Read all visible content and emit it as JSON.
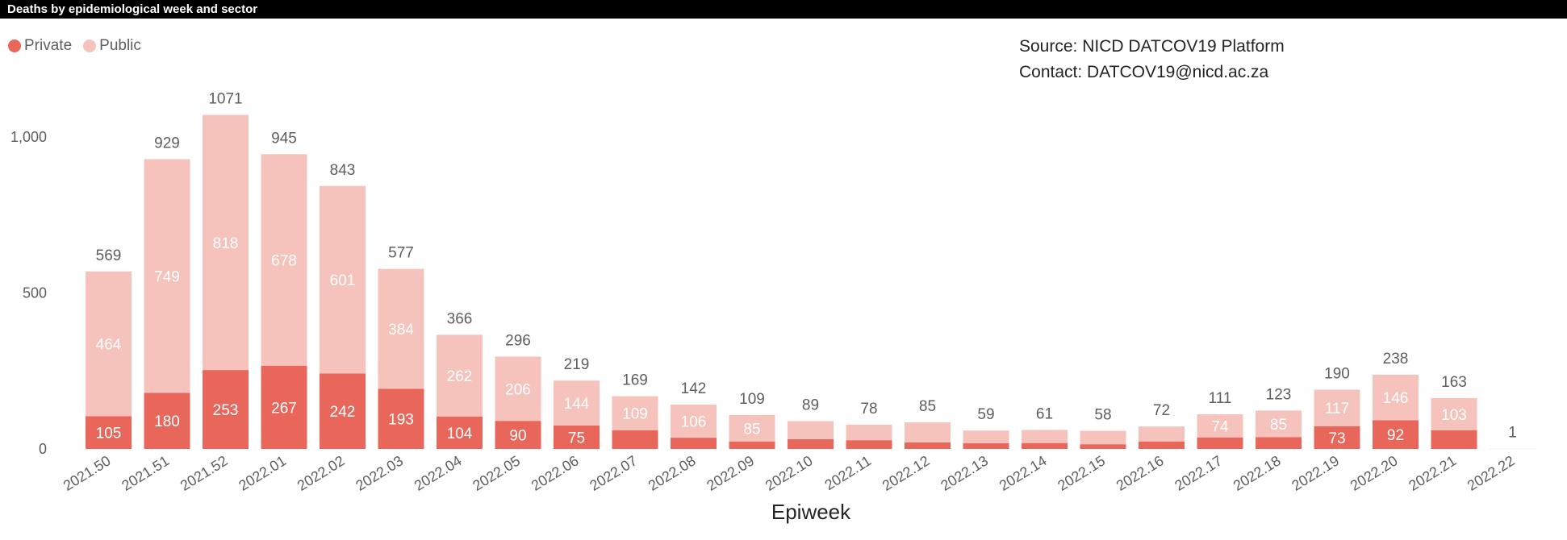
{
  "title": "Deaths by epidemiological week and sector",
  "source_line": "Source: NICD DATCOV19 Platform",
  "contact_line": "Contact: DATCOV19@nicd.ac.za",
  "legend": [
    {
      "name": "Private",
      "color": "#e8675a"
    },
    {
      "name": "Public",
      "color": "#f6c2bc"
    }
  ],
  "chart_data": {
    "type": "bar",
    "stacked": true,
    "categories": [
      "2021.50",
      "2021.51",
      "2021.52",
      "2022.01",
      "2022.02",
      "2022.03",
      "2022.04",
      "2022.05",
      "2022.06",
      "2022.07",
      "2022.08",
      "2022.09",
      "2022.10",
      "2022.11",
      "2022.12",
      "2022.13",
      "2022.14",
      "2022.15",
      "2022.16",
      "2022.17",
      "2022.18",
      "2022.19",
      "2022.20",
      "2022.21",
      "2022.22"
    ],
    "series": [
      {
        "name": "Private",
        "color": "#e8675a",
        "values": [
          105,
          180,
          253,
          267,
          242,
          193,
          104,
          90,
          75,
          60,
          36,
          24,
          31,
          28,
          21,
          18,
          19,
          15,
          24,
          37,
          38,
          73,
          92,
          60,
          0
        ],
        "labels": [
          "105",
          "180",
          "253",
          "267",
          "242",
          "193",
          "104",
          "90",
          "75",
          "",
          "",
          "",
          "",
          "",
          "",
          "",
          "",
          "",
          "",
          "",
          "",
          "73",
          "92",
          "",
          ""
        ]
      },
      {
        "name": "Public",
        "color": "#f6c2bc",
        "values": [
          464,
          749,
          818,
          678,
          601,
          384,
          262,
          206,
          144,
          109,
          106,
          85,
          58,
          50,
          64,
          41,
          42,
          43,
          48,
          74,
          85,
          117,
          146,
          103,
          1
        ],
        "labels": [
          "464",
          "749",
          "818",
          "678",
          "601",
          "384",
          "262",
          "206",
          "144",
          "109",
          "106",
          "85",
          "",
          "",
          "",
          "",
          "",
          "",
          "",
          "74",
          "85",
          "117",
          "146",
          "103",
          ""
        ]
      }
    ],
    "totals": [
      569,
      929,
      1071,
      945,
      843,
      577,
      366,
      296,
      219,
      169,
      142,
      109,
      89,
      78,
      85,
      59,
      61,
      58,
      72,
      111,
      123,
      190,
      238,
      163,
      1
    ],
    "yticks": [
      0,
      500,
      1000
    ],
    "ytick_labels": [
      "0",
      "500",
      "1,000"
    ],
    "ylim": [
      0,
      1100
    ],
    "xlabel": "Epiweek",
    "ylabel": "",
    "legend_position": "top-left",
    "grid": false
  }
}
